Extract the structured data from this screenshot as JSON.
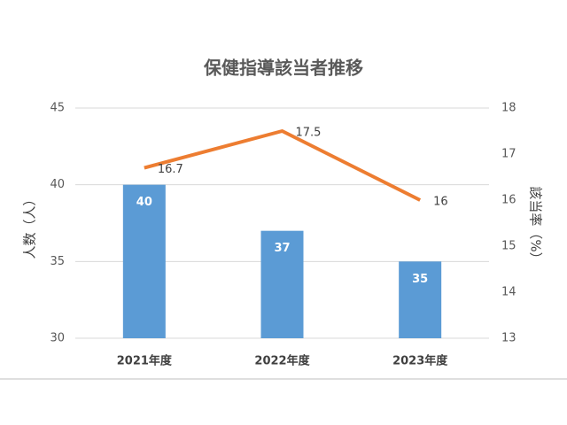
{
  "chart_data": {
    "type": "combo",
    "title": "保健指導該当者推移",
    "categories": [
      "2021年度",
      "2022年度",
      "2023年度"
    ],
    "y_label": "人数（人）",
    "y2_label": "該当率（%）",
    "ylim": [
      30,
      45
    ],
    "yticks": [
      30,
      35,
      40,
      45
    ],
    "y2lim": [
      13,
      18
    ],
    "y2ticks": [
      13,
      14,
      15,
      16,
      17,
      18
    ],
    "grid": true,
    "series": [
      {
        "name": "人数",
        "type": "bar",
        "color": "#5b9bd5",
        "values": [
          40,
          37,
          35
        ]
      },
      {
        "name": "該当率",
        "type": "line",
        "axis": "y2",
        "color": "#ed7d31",
        "values": [
          16.7,
          17.5,
          16
        ]
      }
    ]
  }
}
